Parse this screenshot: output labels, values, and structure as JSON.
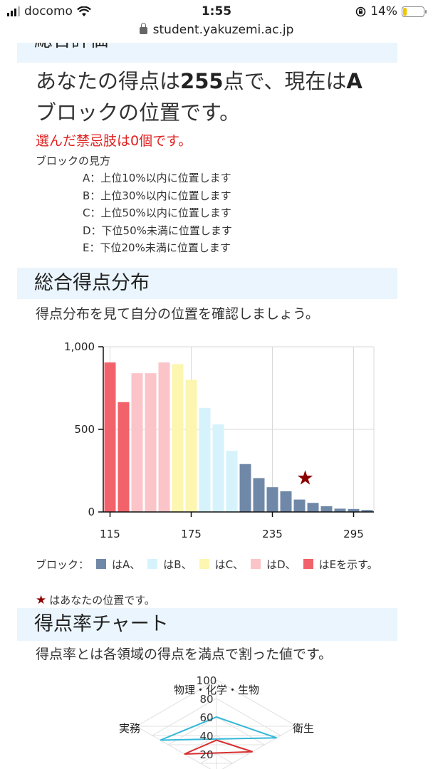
{
  "status_bar": {
    "carrier": "docomo",
    "time": "1:55",
    "battery": "14%"
  },
  "browser": {
    "url": "student.yakuzemi.ac.jp"
  },
  "section_cut": {
    "title": "総合評価"
  },
  "result": {
    "line_prefix": "あなたの得点は",
    "score": "255",
    "line_mid": "点で、現在は",
    "block": "A",
    "line_suffix": "ブロックの位置です。",
    "forbidden": "選んだ禁忌肢は0個です。"
  },
  "block_guide": {
    "title": "ブロックの見方",
    "items": [
      "A：上位10%以内に位置します",
      "B：上位30%以内に位置します",
      "C：上位50%以内に位置します",
      "D：下位50%未満に位置します",
      "E：下位20%未満に位置します"
    ]
  },
  "distribution": {
    "title": "総合得点分布",
    "description": "得点分布を見て自分の位置を確認しましょう。"
  },
  "chart_data": {
    "type": "bar",
    "x": [
      115,
      125,
      135,
      145,
      155,
      165,
      175,
      185,
      195,
      205,
      215,
      225,
      235,
      245,
      255,
      265,
      275,
      285,
      295,
      305
    ],
    "values": [
      905,
      665,
      840,
      840,
      905,
      895,
      800,
      630,
      530,
      370,
      290,
      205,
      150,
      125,
      75,
      55,
      35,
      20,
      18,
      12
    ],
    "bar_blocks": [
      "E",
      "E",
      "D",
      "D",
      "D",
      "C",
      "C",
      "B",
      "B",
      "B",
      "A",
      "A",
      "A",
      "A",
      "A",
      "A",
      "A",
      "A",
      "A",
      "A"
    ],
    "ylim": [
      0,
      1000
    ],
    "y_ticks": [
      "0",
      "500",
      "1,000"
    ],
    "x_ticks": [
      115,
      175,
      235,
      295
    ],
    "x_tick_labels": [
      "115",
      "175",
      "235",
      "295"
    ],
    "marker": {
      "x": 255,
      "y": 210,
      "symbol": "★"
    },
    "grid": true,
    "colors": {
      "A": "#7088a8",
      "B": "#d6f3fc",
      "C": "#fcf6b0",
      "D": "#fbc4c8",
      "E": "#f2626a",
      "marker": "#8b0000"
    }
  },
  "chart_legend": {
    "prefix": "ブロック：",
    "items": [
      {
        "label": "はA、",
        "color": "#7088a8"
      },
      {
        "label": "はB、",
        "color": "#d6f3fc"
      },
      {
        "label": "はC、",
        "color": "#fcf6b0"
      },
      {
        "label": "はD、",
        "color": "#fbc4c8"
      },
      {
        "label": "はEを示す。",
        "color": "#f2626a"
      }
    ],
    "star_symbol": "★",
    "star_note": "はあなたの位置です。"
  },
  "ratio": {
    "title": "得点率チャート",
    "description": "得点率とは各領域の得点を満点で割った値です。"
  },
  "radar": {
    "axes": [
      "物理・化学・生物",
      "衛生",
      "実務"
    ],
    "ticks": [
      "100",
      "80",
      "60",
      "40",
      "20"
    ],
    "series_colors": [
      "#35b8d8",
      "#d83030"
    ],
    "values_student": [
      60,
      75,
      70
    ],
    "values_average": [
      35,
      45,
      40
    ]
  }
}
